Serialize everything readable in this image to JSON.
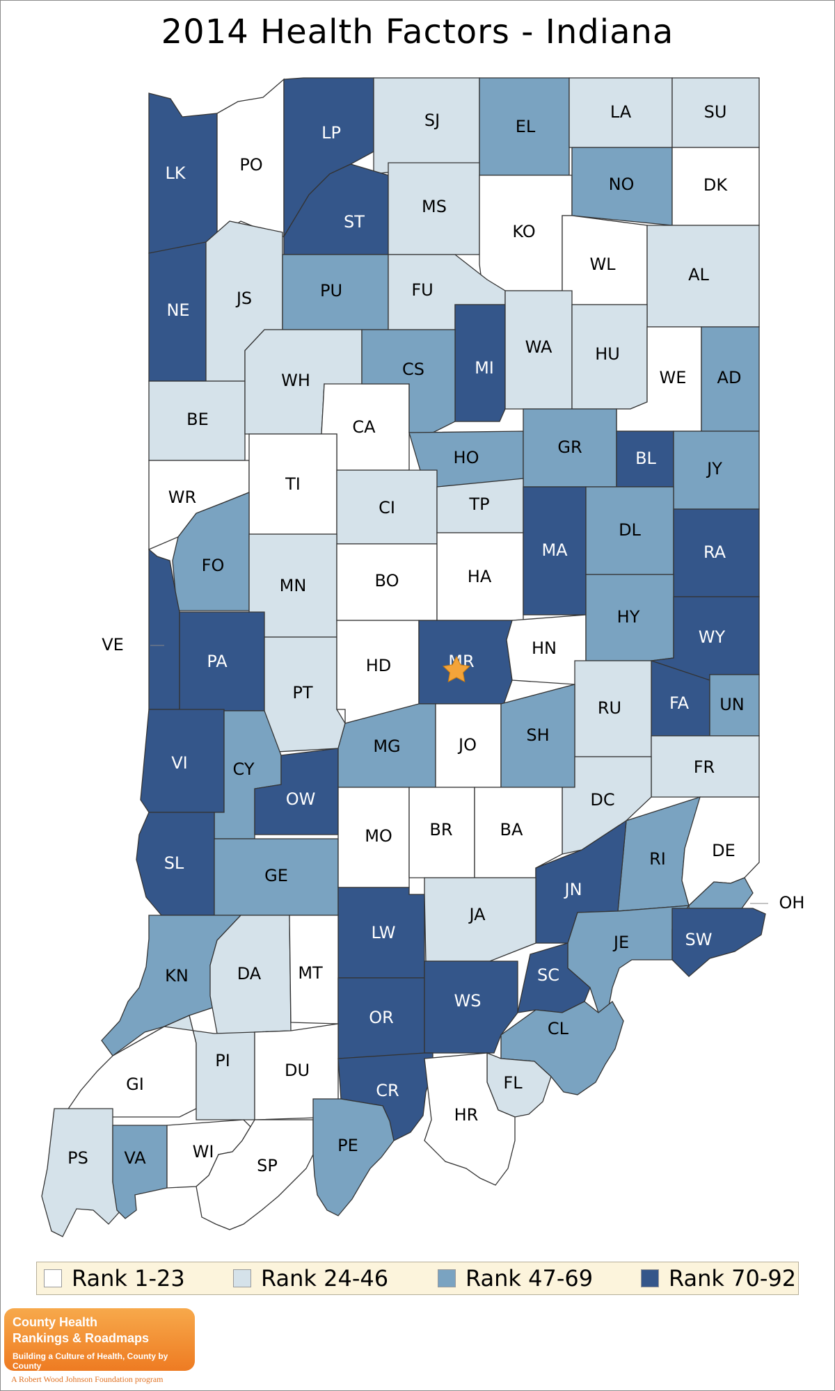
{
  "title": "2014 Health Factors - Indiana",
  "colors": {
    "rank_1_23": "#ffffff",
    "rank_24_46": "#d5e2ea",
    "rank_47_69": "#7aa3c1",
    "rank_70_92": "#34568a",
    "star": "#f4a43a",
    "legend_bg": "#fcf4dc"
  },
  "legend": [
    {
      "label": "Rank 1-23",
      "tier": 1
    },
    {
      "label": "Rank 24-46",
      "tier": 2
    },
    {
      "label": "Rank 47-69",
      "tier": 3
    },
    {
      "label": "Rank 70-92",
      "tier": 4
    }
  ],
  "counties": [
    {
      "code": "LK",
      "tier": 4
    },
    {
      "code": "PO",
      "tier": 1
    },
    {
      "code": "LP",
      "tier": 4
    },
    {
      "code": "SJ",
      "tier": 2
    },
    {
      "code": "EL",
      "tier": 3
    },
    {
      "code": "LA",
      "tier": 2
    },
    {
      "code": "SU",
      "tier": 2
    },
    {
      "code": "ST",
      "tier": 4
    },
    {
      "code": "MS",
      "tier": 2
    },
    {
      "code": "KO",
      "tier": 1
    },
    {
      "code": "NO",
      "tier": 3
    },
    {
      "code": "DK",
      "tier": 1
    },
    {
      "code": "NE",
      "tier": 4
    },
    {
      "code": "JS",
      "tier": 2
    },
    {
      "code": "PU",
      "tier": 3
    },
    {
      "code": "FU",
      "tier": 2
    },
    {
      "code": "WL",
      "tier": 1
    },
    {
      "code": "AL",
      "tier": 2
    },
    {
      "code": "MI",
      "tier": 4
    },
    {
      "code": "WA",
      "tier": 2
    },
    {
      "code": "HU",
      "tier": 2
    },
    {
      "code": "WE",
      "tier": 1
    },
    {
      "code": "AD",
      "tier": 3
    },
    {
      "code": "BE",
      "tier": 2
    },
    {
      "code": "WH",
      "tier": 2
    },
    {
      "code": "CA",
      "tier": 1
    },
    {
      "code": "CS",
      "tier": 3
    },
    {
      "code": "WR",
      "tier": 1
    },
    {
      "code": "TI",
      "tier": 1
    },
    {
      "code": "HO",
      "tier": 3
    },
    {
      "code": "GR",
      "tier": 3
    },
    {
      "code": "BL",
      "tier": 4
    },
    {
      "code": "JY",
      "tier": 3
    },
    {
      "code": "CI",
      "tier": 2
    },
    {
      "code": "TP",
      "tier": 2
    },
    {
      "code": "FO",
      "tier": 3
    },
    {
      "code": "MN",
      "tier": 2
    },
    {
      "code": "BO",
      "tier": 1
    },
    {
      "code": "HA",
      "tier": 1
    },
    {
      "code": "MA",
      "tier": 4
    },
    {
      "code": "DL",
      "tier": 3
    },
    {
      "code": "RA",
      "tier": 4
    },
    {
      "code": "VE",
      "tier": 4
    },
    {
      "code": "PA",
      "tier": 4
    },
    {
      "code": "PT",
      "tier": 2
    },
    {
      "code": "HD",
      "tier": 1
    },
    {
      "code": "MR",
      "tier": 4
    },
    {
      "code": "HN",
      "tier": 1
    },
    {
      "code": "HY",
      "tier": 3
    },
    {
      "code": "WY",
      "tier": 4
    },
    {
      "code": "FA",
      "tier": 4
    },
    {
      "code": "UN",
      "tier": 3
    },
    {
      "code": "RU",
      "tier": 2
    },
    {
      "code": "VI",
      "tier": 4
    },
    {
      "code": "CY",
      "tier": 3
    },
    {
      "code": "OW",
      "tier": 4
    },
    {
      "code": "MG",
      "tier": 3
    },
    {
      "code": "JO",
      "tier": 1
    },
    {
      "code": "SH",
      "tier": 3
    },
    {
      "code": "FR",
      "tier": 2
    },
    {
      "code": "DC",
      "tier": 2
    },
    {
      "code": "SL",
      "tier": 4
    },
    {
      "code": "GE",
      "tier": 3
    },
    {
      "code": "MO",
      "tier": 1
    },
    {
      "code": "BR",
      "tier": 1
    },
    {
      "code": "BA",
      "tier": 1
    },
    {
      "code": "RI",
      "tier": 3
    },
    {
      "code": "DE",
      "tier": 1
    },
    {
      "code": "JN",
      "tier": 4
    },
    {
      "code": "OH",
      "tier": 3
    },
    {
      "code": "LW",
      "tier": 4
    },
    {
      "code": "JA",
      "tier": 2
    },
    {
      "code": "KN",
      "tier": 3
    },
    {
      "code": "DA",
      "tier": 2
    },
    {
      "code": "MT",
      "tier": 1
    },
    {
      "code": "JE",
      "tier": 3
    },
    {
      "code": "SW",
      "tier": 4
    },
    {
      "code": "SC",
      "tier": 4
    },
    {
      "code": "OR",
      "tier": 4
    },
    {
      "code": "WS",
      "tier": 4
    },
    {
      "code": "CL",
      "tier": 3
    },
    {
      "code": "GI",
      "tier": 1
    },
    {
      "code": "PI",
      "tier": 2
    },
    {
      "code": "DU",
      "tier": 1
    },
    {
      "code": "CR",
      "tier": 4
    },
    {
      "code": "FL",
      "tier": 2
    },
    {
      "code": "HR",
      "tier": 1
    },
    {
      "code": "PS",
      "tier": 2
    },
    {
      "code": "VA",
      "tier": 3
    },
    {
      "code": "WI",
      "tier": 1
    },
    {
      "code": "SP",
      "tier": 1
    },
    {
      "code": "PE",
      "tier": 3
    }
  ],
  "capital_county": "MR",
  "logo": {
    "line1": "County Health",
    "line2": "Rankings & Roadmaps",
    "line3": "Building a Culture of Health, County by County",
    "sub": "A Robert Wood Johnson Foundation program"
  }
}
